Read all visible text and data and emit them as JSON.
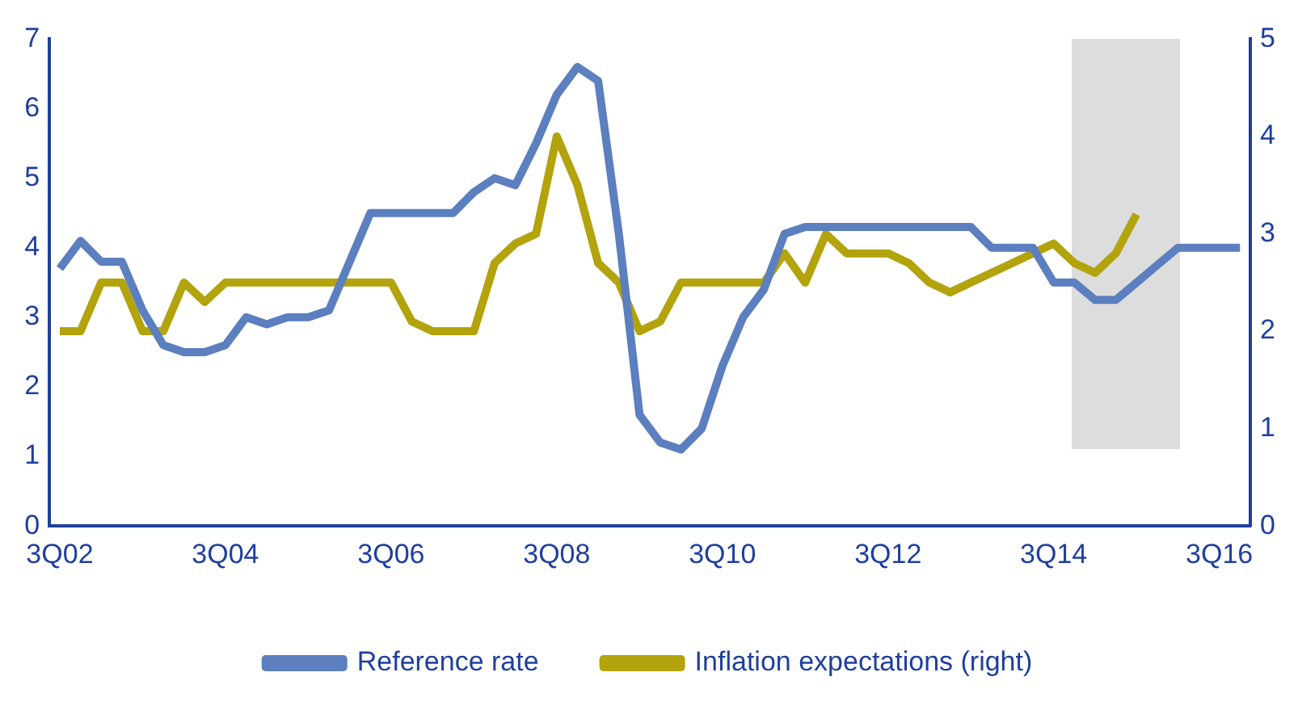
{
  "chart_data": {
    "type": "line",
    "categories": [
      "3Q02",
      null,
      null,
      null,
      null,
      null,
      null,
      null,
      "3Q04",
      null,
      null,
      null,
      null,
      null,
      null,
      null,
      "3Q06",
      null,
      null,
      null,
      null,
      null,
      null,
      null,
      "3Q08",
      null,
      null,
      null,
      null,
      null,
      null,
      null,
      "3Q10",
      null,
      null,
      null,
      null,
      null,
      null,
      null,
      "3Q12",
      null,
      null,
      null,
      null,
      null,
      null,
      null,
      "3Q14",
      null,
      null,
      null,
      null,
      null,
      null,
      null,
      "3Q16",
      null
    ],
    "series": [
      {
        "name": "Reference rate",
        "color": "#5b7fbf",
        "values": [
          3.7,
          4.1,
          3.8,
          3.8,
          3.1,
          2.6,
          2.5,
          2.5,
          2.6,
          3.0,
          2.9,
          3.0,
          3.0,
          3.1,
          3.8,
          4.5,
          4.5,
          4.5,
          4.5,
          4.5,
          4.8,
          5.0,
          4.9,
          5.5,
          6.2,
          6.6,
          6.4,
          4.2,
          1.6,
          1.2,
          1.1,
          1.4,
          2.3,
          3.0,
          3.4,
          4.2,
          4.3,
          4.3,
          4.3,
          4.3,
          4.3,
          4.3,
          4.3,
          4.3,
          4.3,
          4.0,
          4.0,
          4.0,
          3.5,
          3.5,
          3.25,
          3.25,
          3.5,
          3.75,
          4.0,
          4.0,
          4.0,
          4.0
        ]
      },
      {
        "name": "Inflation expectations (right)",
        "color": "#b3a30c",
        "axis": "y2",
        "values": [
          2.0,
          2.0,
          2.5,
          2.5,
          2.0,
          2.0,
          2.5,
          2.3,
          2.5,
          2.5,
          2.5,
          2.5,
          2.5,
          2.5,
          2.5,
          2.5,
          2.5,
          2.1,
          2.0,
          2.0,
          2.0,
          2.7,
          2.9,
          3.0,
          4.0,
          3.5,
          2.7,
          2.5,
          2.0,
          2.1,
          2.5,
          2.5,
          2.5,
          2.5,
          2.5,
          2.8,
          2.5,
          3.0,
          2.8,
          2.8,
          2.8,
          2.7,
          2.5,
          2.4,
          2.5,
          2.6,
          2.7,
          2.8,
          2.9,
          2.7,
          2.6,
          2.8,
          3.2,
          null,
          null,
          null,
          null,
          null
        ]
      }
    ],
    "ylim": [
      0,
      7
    ],
    "yticks": [
      0,
      1,
      2,
      3,
      4,
      5,
      6,
      7
    ],
    "y2lim": [
      0,
      5
    ],
    "y2ticks": [
      0,
      1,
      2,
      3,
      4,
      5
    ],
    "grid": false,
    "legend": "bottom",
    "marker": "none",
    "line_style": "solid"
  }
}
